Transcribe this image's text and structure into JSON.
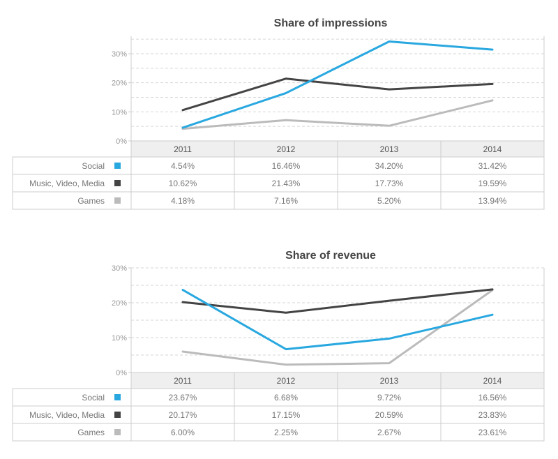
{
  "chart_data": [
    {
      "type": "line",
      "title": "Share of impressions",
      "categories": [
        "2011",
        "2012",
        "2013",
        "2014"
      ],
      "yticks": [
        "0%",
        "10%",
        "20%",
        "30%"
      ],
      "ylim": [
        0,
        36
      ],
      "grid": true,
      "series": [
        {
          "name": "Social",
          "color": "#29a8e0",
          "values": [
            4.54,
            16.46,
            34.2,
            31.42
          ],
          "labels": [
            "4.54%",
            "16.46%",
            "34.20%",
            "31.42%"
          ]
        },
        {
          "name": "Music, Video, Media",
          "color": "#444444",
          "values": [
            10.62,
            21.43,
            17.73,
            19.59
          ],
          "labels": [
            "10.62%",
            "21.43%",
            "17.73%",
            "19.59%"
          ]
        },
        {
          "name": "Games",
          "color": "#bbbbbb",
          "values": [
            4.18,
            7.16,
            5.2,
            13.94
          ],
          "labels": [
            "4.18%",
            "7.16%",
            "5.20%",
            "13.94%"
          ]
        }
      ]
    },
    {
      "type": "line",
      "title": "Share of revenue",
      "categories": [
        "2011",
        "2012",
        "2013",
        "2014"
      ],
      "yticks": [
        "0%",
        "10%",
        "20%",
        "30%"
      ],
      "ylim": [
        0,
        30
      ],
      "grid": true,
      "series": [
        {
          "name": "Social",
          "color": "#29a8e0",
          "values": [
            23.67,
            6.68,
            9.72,
            16.56
          ],
          "labels": [
            "23.67%",
            "6.68%",
            "9.72%",
            "16.56%"
          ]
        },
        {
          "name": "Music, Video, Media",
          "color": "#444444",
          "values": [
            20.17,
            17.15,
            20.59,
            23.83
          ],
          "labels": [
            "20.17%",
            "17.15%",
            "20.59%",
            "23.83%"
          ]
        },
        {
          "name": "Games",
          "color": "#bbbbbb",
          "values": [
            6.0,
            2.25,
            2.67,
            23.61
          ],
          "labels": [
            "6.00%",
            "2.25%",
            "2.67%",
            "23.61%"
          ]
        }
      ]
    }
  ]
}
